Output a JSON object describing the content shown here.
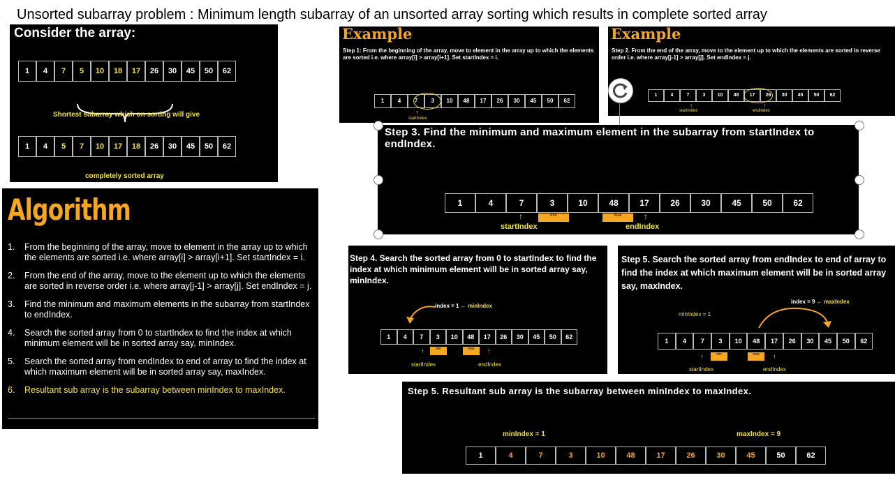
{
  "page_title": "Unsorted subarray problem : Minimum length subarray of an unsorted array sorting which results in complete sorted array",
  "p1": {
    "heading": "Consider the array:",
    "array1": [
      "1",
      "4",
      "7",
      "5",
      "10",
      "18",
      "17",
      "26",
      "30",
      "45",
      "50",
      "62"
    ],
    "brace_label": "Shortest subarray which on sorting will give",
    "array2": [
      "1",
      "4",
      "5",
      "7",
      "10",
      "17",
      "18",
      "26",
      "30",
      "45",
      "50",
      "62"
    ],
    "footer": "completely sorted array"
  },
  "p2": {
    "title": "Example",
    "text": "Step 1: From the beginning of the array, move to element in the array up to which the elements are sorted i.e. where array[i] > array[i+1]. Set startIndex = i.",
    "array": [
      "1",
      "4",
      "7",
      "3",
      "10",
      "48",
      "17",
      "26",
      "30",
      "45",
      "50",
      "62"
    ],
    "label": "startIndex"
  },
  "p3": {
    "title": "Example",
    "text": "Step 2. From the end of the array, move to the element up to which the elements are sorted in reverse order i.e. where array[j-1] > array[j]. Set endIndex = j.",
    "array": [
      "1",
      "4",
      "7",
      "3",
      "10",
      "48",
      "17",
      "26",
      "30",
      "45",
      "50",
      "62"
    ],
    "label_start": "startIndex",
    "label_end": "endIndex"
  },
  "p4": {
    "text": "Step 3. Find the minimum and maximum element in the subarray from startIndex to endIndex.",
    "array": [
      "1",
      "4",
      "7",
      "3",
      "10",
      "48",
      "17",
      "26",
      "30",
      "45",
      "50",
      "62"
    ],
    "min_tag": "min",
    "max_tag": "max",
    "label_start": "startIndex",
    "label_end": "endIndex"
  },
  "algo": {
    "title": "Algorithm",
    "items": [
      "From the beginning of the array, move to element in the array up to which the elements are sorted i.e. where array[i] > array[i+1]. Set startIndex = i.",
      "From the end of the array, move to the element up to which the elements are sorted in reverse order i.e. where array[j-1] > array[j]. Set endIndex = j.",
      "Find the minimum and maximum elements in the subarray from startIndex to endIndex.",
      "Search the sorted array from 0 to startIndex to find the index at which minimum element will be in sorted array say, minIndex.",
      "Search the sorted array from endIndex to end of array to find the index at which maximum element will be in sorted array say, maxIndex.",
      "Resultant sub array is the subarray between minIndex to maxIndex."
    ]
  },
  "p5": {
    "text": "Step 4. Search the sorted array from 0 to startIndex to find the index at which minimum element will be in sorted array say, minIndex.",
    "annotation": "index = 1",
    "annotation_name": "minIndex",
    "array": [
      "1",
      "4",
      "7",
      "3",
      "10",
      "48",
      "17",
      "26",
      "30",
      "45",
      "50",
      "62"
    ],
    "min_tag": "min",
    "max_tag": "max",
    "label_start": "startIndex",
    "label_end": "endIndex"
  },
  "p6": {
    "text": "Step 5. Search the sorted array from endIndex to end of array to find the index at which maximum element will be in sorted array say, maxIndex.",
    "annotation": "index = 9",
    "annotation_name": "maxIndex",
    "min_index": "minIndex = 1",
    "array": [
      "1",
      "4",
      "7",
      "3",
      "10",
      "48",
      "17",
      "26",
      "30",
      "45",
      "50",
      "62"
    ],
    "min_tag": "min",
    "max_tag": "max",
    "label_start": "startIndex",
    "label_end": "endIndex"
  },
  "p7": {
    "text": "Step 5. Resultant sub array is the subarray between minIndex to maxIndex.",
    "min_index": "minIndex = 1",
    "max_index": "maxIndex = 9",
    "array": [
      "1",
      "4",
      "7",
      "3",
      "10",
      "48",
      "17",
      "26",
      "30",
      "45",
      "50",
      "62"
    ]
  },
  "colors": {
    "yellow": "#f5e04a",
    "orange": "#f5a623",
    "panel": "#000000"
  }
}
